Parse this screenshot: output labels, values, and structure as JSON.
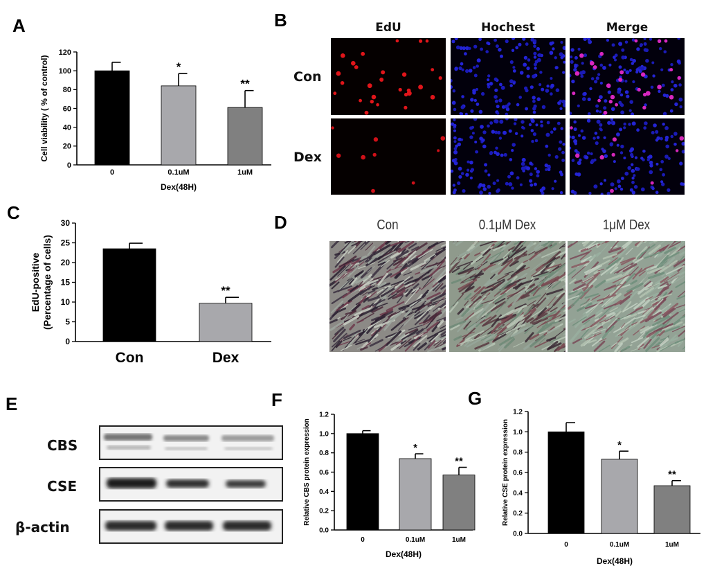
{
  "panel_labels": {
    "A": "A",
    "B": "B",
    "C": "C",
    "D": "D",
    "E": "E",
    "F": "F",
    "G": "G"
  },
  "edu_images": {
    "columns": [
      "EdU",
      "Hochest",
      "Merge"
    ],
    "rows": [
      "Con",
      "Dex"
    ]
  },
  "staining_images": {
    "columns": [
      "Con",
      "0.1μM Dex",
      "1μM Dex"
    ]
  },
  "western_blot": {
    "rows": [
      "CBS",
      "CSE",
      "β-actin"
    ]
  },
  "colors": {
    "black_bar": "#000000",
    "light_gray_bar": "#a8a8ac",
    "dark_gray_bar": "#808080"
  },
  "chart_data": [
    {
      "id": "A",
      "type": "bar",
      "categories": [
        "0",
        "0.1uM",
        "1uM"
      ],
      "values": [
        100,
        84,
        61
      ],
      "errors": [
        9,
        13,
        18
      ],
      "significance": [
        "",
        "*",
        "**"
      ],
      "xlabel": "Dex(48H)",
      "ylabel": "Cell viability ( % of control)",
      "ylim": [
        0,
        120
      ],
      "yticks": [
        0,
        20,
        40,
        60,
        80,
        100,
        120
      ],
      "bar_colors": [
        "#000000",
        "#a8a8ac",
        "#808080"
      ]
    },
    {
      "id": "C",
      "type": "bar",
      "categories": [
        "Con",
        "Dex"
      ],
      "values": [
        23.5,
        9.7
      ],
      "errors": [
        1.4,
        1.5
      ],
      "significance": [
        "",
        "**"
      ],
      "xlabel": "",
      "ylabel": "EdU-positive\n(Percentage of cells)",
      "ylim": [
        0,
        30
      ],
      "yticks": [
        0,
        5,
        10,
        15,
        20,
        25,
        30
      ],
      "bar_colors": [
        "#000000",
        "#a8a8ac"
      ]
    },
    {
      "id": "F",
      "type": "bar",
      "categories": [
        "0",
        "0.1uM",
        "1uM"
      ],
      "values": [
        1.0,
        0.74,
        0.57
      ],
      "errors": [
        0.03,
        0.05,
        0.08
      ],
      "significance": [
        "",
        "*",
        "**"
      ],
      "xlabel": "Dex(48H)",
      "ylabel": "Relative CBS protein expression",
      "ylim": [
        0,
        1.2
      ],
      "yticks": [
        "0.0",
        "0.2",
        "0.4",
        "0.6",
        "0.8",
        "1.0",
        "1.2"
      ],
      "bar_colors": [
        "#000000",
        "#a8a8ac",
        "#808080"
      ]
    },
    {
      "id": "G",
      "type": "bar",
      "categories": [
        "0",
        "0.1uM",
        "1uM"
      ],
      "values": [
        1.0,
        0.73,
        0.47
      ],
      "errors": [
        0.09,
        0.08,
        0.05
      ],
      "significance": [
        "",
        "*",
        "**"
      ],
      "xlabel": "Dex(48H)",
      "ylabel": "Relative CSE protein expression",
      "ylim": [
        0,
        1.2
      ],
      "yticks": [
        "0.0",
        "0.2",
        "0.4",
        "0.6",
        "0.8",
        "1.0",
        "1.2"
      ],
      "bar_colors": [
        "#000000",
        "#a8a8ac",
        "#808080"
      ]
    }
  ]
}
